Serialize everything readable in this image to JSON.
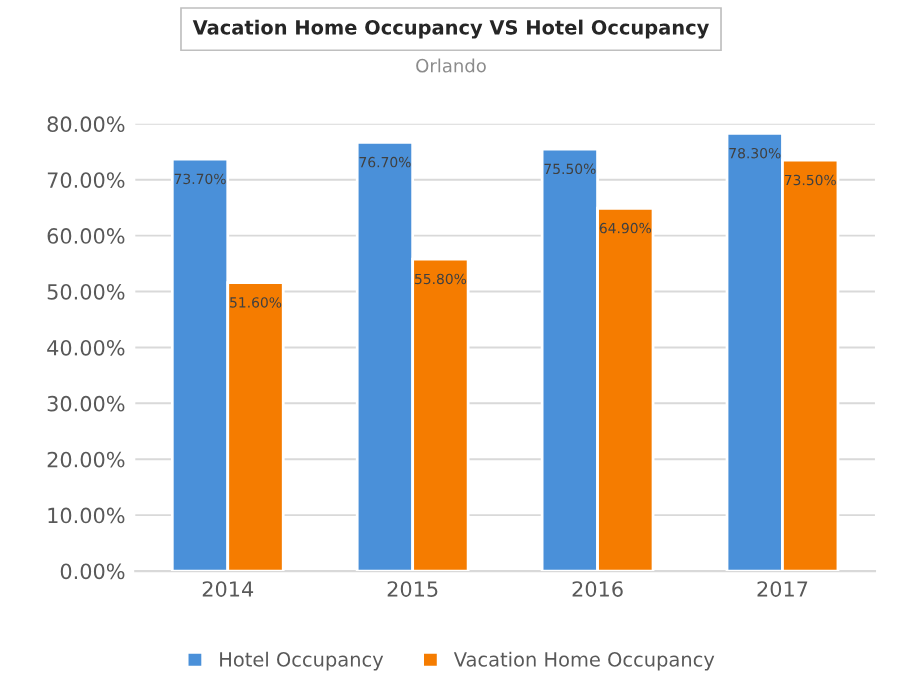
{
  "chart_data": {
    "type": "bar",
    "title": "Vacation Home Occupancy VS Hotel Occupancy",
    "subtitle": "Orlando",
    "categories": [
      "2014",
      "2015",
      "2016",
      "2017"
    ],
    "series": [
      {
        "name": "Hotel Occupancy",
        "color": "#4a90d9",
        "values": [
          73.7,
          76.7,
          75.5,
          78.3
        ],
        "value_labels": [
          "73.70%",
          "76.70%",
          "75.50%",
          "78.30%"
        ]
      },
      {
        "name": "Vacation Home Occupancy",
        "color": "#f57c00",
        "values": [
          51.6,
          55.8,
          64.9,
          73.5
        ],
        "value_labels": [
          "51.60%",
          "55.80%",
          "64.90%",
          "73.50%"
        ]
      }
    ],
    "ylim": [
      0,
      80
    ],
    "yticks": [
      {
        "value": 0,
        "label": "0.00%"
      },
      {
        "value": 10,
        "label": "10.00%"
      },
      {
        "value": 20,
        "label": "20.00%"
      },
      {
        "value": 30,
        "label": "30.00%"
      },
      {
        "value": 40,
        "label": "40.00%"
      },
      {
        "value": 50,
        "label": "50.00%"
      },
      {
        "value": 60,
        "label": "60.00%"
      },
      {
        "value": 70,
        "label": "70.00%"
      },
      {
        "value": 80,
        "label": "80.00%"
      }
    ],
    "grid": "y",
    "legend": "bottom"
  }
}
